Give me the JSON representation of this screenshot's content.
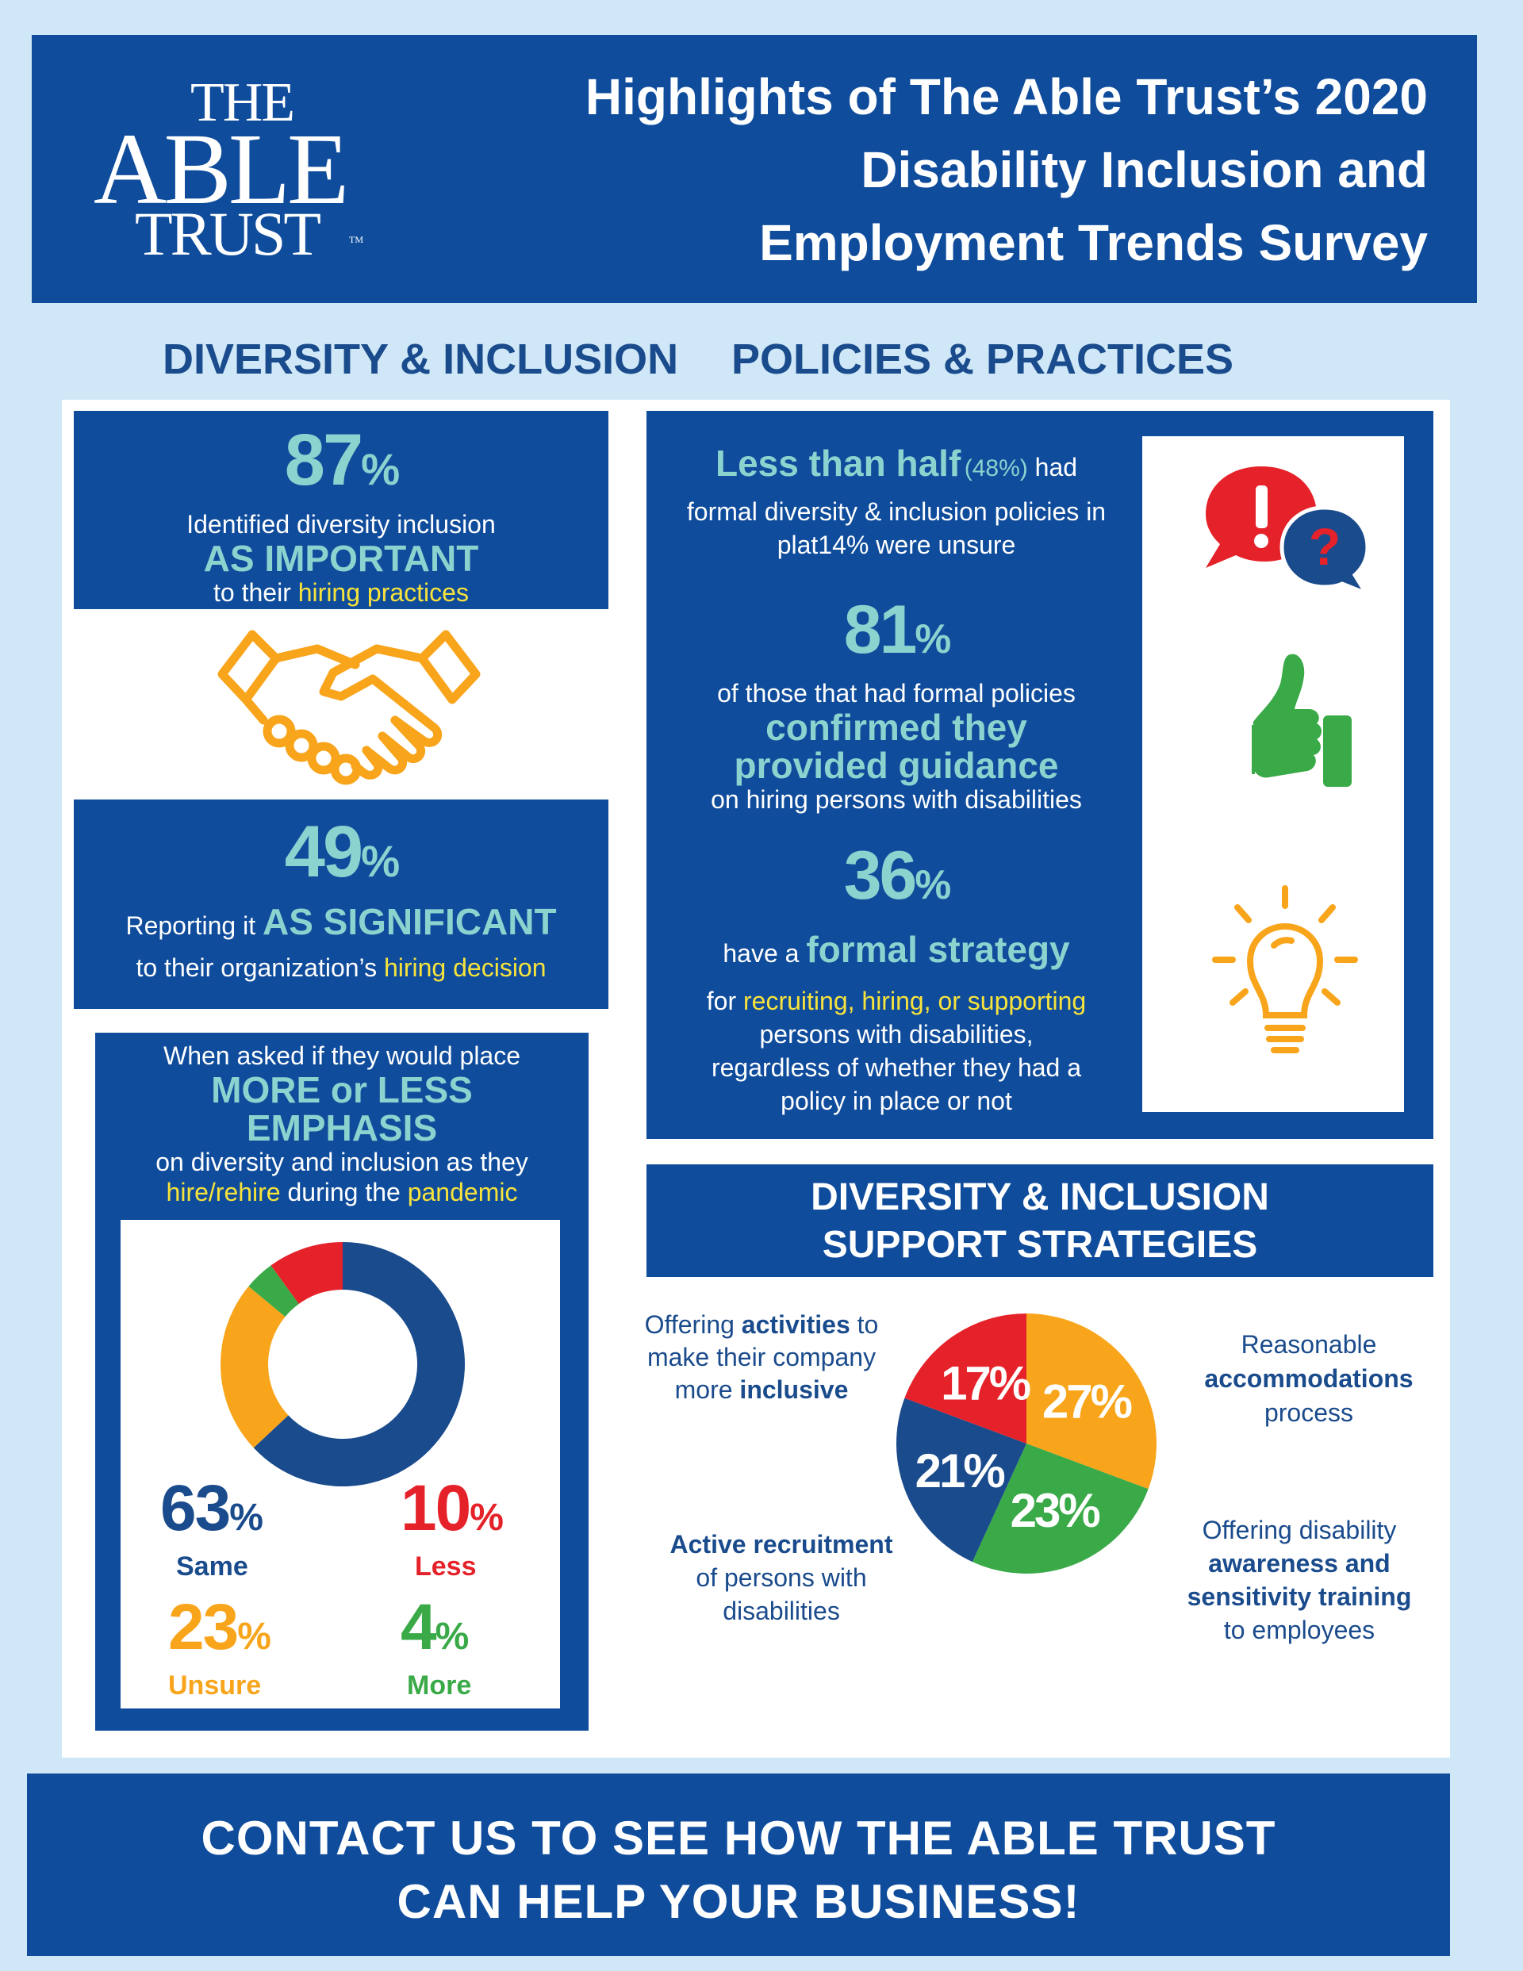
{
  "header": {
    "logo": {
      "line1": "THE",
      "line2": "ABLE",
      "line3": "TRUST",
      "tm": "TM"
    },
    "title_lines": [
      "Highlights of The Able Trust’s 2020",
      "Disability Inclusion and",
      "Employment Trends Survey"
    ]
  },
  "sections": {
    "left": "DIVERSITY & INCLUSION",
    "right": "POLICIES & PRACTICES"
  },
  "stat_important": {
    "number": "87",
    "pct": "%",
    "line1": "Identified diversity inclusion",
    "emphasis": "AS IMPORTANT",
    "line3_pre": "to their ",
    "line3_hl": "hiring practices"
  },
  "stat_significant": {
    "number": "49",
    "pct": "%",
    "line1_pre": "Reporting it ",
    "emphasis": "AS SIGNIFICANT",
    "line2_pre": "to their organization’s ",
    "line2_hl": "hiring decision"
  },
  "emphasis_box": {
    "line1": "When asked if they would place",
    "emphasis1": "MORE or LESS",
    "emphasis2": "EMPHASIS",
    "line3": "on diversity and inclusion as they",
    "line4_hl1": "hire/rehire",
    "line4_mid": " during the ",
    "line4_hl2": "pandemic"
  },
  "donut_legend": [
    {
      "value": "63",
      "pct": "%",
      "label": "Same",
      "color": "#1a4b8c"
    },
    {
      "value": "10",
      "pct": "%",
      "label": "Less",
      "color": "#e52229"
    },
    {
      "value": "23",
      "pct": "%",
      "label": "Unsure",
      "color": "#f8a51c"
    },
    {
      "value": "4",
      "pct": "%",
      "label": "More",
      "color": "#3aaa48"
    }
  ],
  "policies": {
    "s1_lead": "Less than half",
    "s1_paren": "(48%)",
    "s1_rest1": " had",
    "s1_line2": "formal diversity & inclusion policies in",
    "s1_line3": "plat14% were unsure",
    "s2_number": "81",
    "s2_pct": "%",
    "s2_line1": "of those that had formal policies",
    "s2_em1": "confirmed they",
    "s2_em2": "provided guidance",
    "s2_line4": "on hiring persons with disabilities",
    "s3_number": "36",
    "s3_pct": "%",
    "s3_pre": "have a ",
    "s3_em": "formal strategy",
    "s3_l2_pre": "for ",
    "s3_l2_hl": "recruiting, hiring, or supporting",
    "s3_l3": "persons with disabilities,",
    "s3_l4": "regardless of whether they had a",
    "s3_l5": "policy in place or not"
  },
  "icons": [
    "speech-bubbles-icon",
    "thumbs-up-icon",
    "lightbulb-icon",
    "handshake-icon"
  ],
  "support": {
    "title1": "DIVERSITY & INCLUSION",
    "title2": "SUPPORT STRATEGIES",
    "activities": {
      "l1_pre": "Offering ",
      "l1_b": "activities",
      "l1_post": " to",
      "l2": "make their company",
      "l3_pre": "more ",
      "l3_b": "inclusive"
    },
    "accommodations": {
      "l1": "Reasonable",
      "l2": "accommodations",
      "l3": "process"
    },
    "recruitment": {
      "l1": "Active recruitment",
      "l2": "of persons with",
      "l3": "disabilities"
    },
    "training": {
      "l1": "Offering disability",
      "l2": "awareness and",
      "l3": "sensitivity training",
      "l4": "to employees"
    }
  },
  "footer": {
    "line1": "CONTACT US TO SEE HOW THE ABLE TRUST",
    "line2": "CAN HELP YOUR BUSINESS!"
  },
  "colors": {
    "blue": "#0f4c9c",
    "teal": "#8ad3cf",
    "yellow": "#f7e33c",
    "red": "#e52229",
    "orange": "#f8a51c",
    "green": "#3aaa48"
  },
  "chart_data": [
    {
      "type": "pie",
      "style": "donut",
      "categories": [
        "Same",
        "Unsure",
        "More",
        "Less"
      ],
      "values": [
        63,
        23,
        4,
        10
      ],
      "colors": [
        "#1a4b8c",
        "#f8a51c",
        "#3aaa48",
        "#e52229"
      ]
    },
    {
      "type": "pie",
      "categories": [
        "Reasonable accommodations process",
        "Offering disability awareness and sensitivity training to employees",
        "Active recruitment of persons with disabilities",
        "Offering activities to make their company more inclusive"
      ],
      "values": [
        27,
        23,
        21,
        17
      ],
      "labels": [
        "27%",
        "23%",
        "21%",
        "17%"
      ],
      "colors": [
        "#f8a51c",
        "#3aaa48",
        "#1a4b8c",
        "#e52229"
      ]
    }
  ]
}
